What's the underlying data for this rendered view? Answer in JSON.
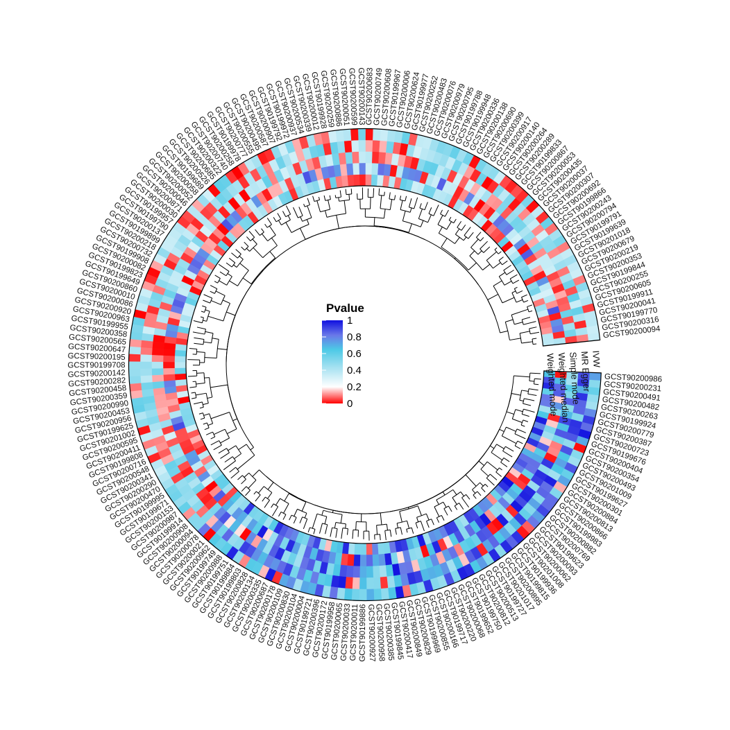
{
  "chart_data": {
    "type": "heatmap",
    "layout": "circular",
    "legend": {
      "title": "Pvalue",
      "ticks": [
        "1",
        "0.8",
        "0.6",
        "0.4",
        "0.2",
        "0"
      ],
      "tick_values": [
        1,
        0.8,
        0.6,
        0.4,
        0.2,
        0
      ],
      "placement": "center"
    },
    "colors": {
      "low": "#ff0000",
      "mid": "#ffffff",
      "midhigh": "#4cc9e6",
      "high": "#1010e0"
    },
    "tracks": [
      "IVW",
      "MR Egger",
      "Simple mode",
      "Weighted median",
      "Weighted mode"
    ],
    "group1": [
      "GCST90200094",
      "GCST90200316",
      "GCST90199770",
      "GCST90200041",
      "GCST90199911",
      "GCST90200605",
      "GCST90200255",
      "GCST90199844",
      "GCST90200353",
      "GCST90200219",
      "GCST90200679",
      "GCST90201018",
      "GCST90199639",
      "GCST90199791",
      "GCST90200794",
      "GCST90200243",
      "GCST90199866",
      "GCST90200692",
      "GCST90200307",
      "GCST90200037",
      "GCST90200435",
      "GCST90200053",
      "GCST90200867",
      "GCST90199833",
      "GCST90200289",
      "GCST90200264",
      "GCST90200140",
      "GCST90200917",
      "GCST90200399",
      "GCST90200690",
      "GCST90200138",
      "GCST90200336",
      "GCST90199948",
      "GCST90199788",
      "GCST90200795",
      "GCST90200979",
      "GCST90200076",
      "GCST90200483",
      "GCST90200252",
      "GCST90199977",
      "GCST90200624",
      "GCST90200006",
      "GCST90199967",
      "GCST90200608",
      "GCST90200749",
      "GCST90200683",
      "GCST90200143",
      "GCST90200599",
      "GCST90200051",
      "GCST90200886",
      "GCST90200259",
      "GCST90199928",
      "GCST90200012",
      "GCST90200339",
      "GCST90200534",
      "GCST90200937",
      "GCST90199972",
      "GCST90199792",
      "GCST90200907",
      "GCST90200587",
      "GCST90200495",
      "GCST90200555",
      "GCST90200777",
      "GCST90199978",
      "GCST90200258",
      "GCST90200740",
      "GCST90200322",
      "GCST90200685",
      "GCST90200526",
      "GCST90199689",
      "GCST90200058",
      "GCST90200052",
      "GCST90200046",
      "GCST90200871",
      "GCST90200030",
      "GCST90199957",
      "GCST90199790",
      "GCST90200137",
      "GCST90199899",
      "GCST90200218",
      "GCST90200732",
      "GCST90199908",
      "GCST90200082",
      "GCST90199823",
      "GCST90199649",
      "GCST90200860",
      "GCST90200010",
      "GCST90200086",
      "GCST90200920",
      "GCST90200963",
      "GCST90199955",
      "GCST90200358",
      "GCST90200565",
      "GCST90200647",
      "GCST90200195",
      "GCST90199708",
      "GCST90200142",
      "GCST90200282",
      "GCST90200458",
      "GCST90200359",
      "GCST90200990",
      "GCST90200453",
      "GCST90200956",
      "GCST90199625",
      "GCST90201002",
      "GCST90200595",
      "GCST90200411",
      "GCST90199808",
      "GCST90200716",
      "GCST90200548",
      "GCST90200341",
      "GCST90200290",
      "GCST90200470",
      "GCST90199995",
      "GCST90199671",
      "GCST90200153",
      "GCST90200987",
      "GCST90199914",
      "GCST90200908",
      "GCST90200094",
      "GCST90200078",
      "GCST90200021",
      "GCST90200962",
      "GCST90199749",
      "GCST90200988",
      "GCST90199751",
      "GCST90199884",
      "GCST90199803",
      "GCST90200828",
      "GCST90200134",
      "GCST90200335",
      "GCST90200687",
      "GCST90200178",
      "GCST90200109",
      "GCST90200830",
      "GCST90200104",
      "GCST90200004",
      "GCST90199721",
      "GCST90200396",
      "GCST90200172",
      "GCST90199958",
      "GCST90200065",
      "GCST90200033",
      "GCST90200011",
      "GCST90199886",
      "GCST90200927",
      "GCST90200958",
      "GCST90200385",
      "GCST90199845",
      "GCST90200417",
      "GCST90200849",
      "GCST90200829",
      "GCST90199969",
      "GCST90200855",
      "GCST90200166",
      "GCST90199717",
      "GCST90200220",
      "GCST90200068",
      "GCST90199652",
      "GCST90199750",
      "GCST90200812",
      "GCST90200513",
      "GCST90199727",
      "GCST90201017",
      "GCST90200895",
      "GCST90199815",
      "GCST90199936",
      "GCST90201008",
      "GCST90200062",
      "GCST90200093",
      "GCST90199623",
      "GCST90200769",
      "GCST90200882",
      "GCST90199983",
      "GCST90200866",
      "GCST90200813",
      "GCST90200884",
      "GCST90200301",
      "GCST90199627",
      "GCST90201009",
      "GCST90200493",
      "GCST90200354",
      "GCST90200404",
      "GCST90199676",
      "GCST90200723",
      "GCST90200387",
      "GCST90200779",
      "GCST90199924",
      "GCST90200263",
      "GCST90200482",
      "GCST90200491",
      "GCST90200231",
      "GCST90200986"
    ]
  }
}
